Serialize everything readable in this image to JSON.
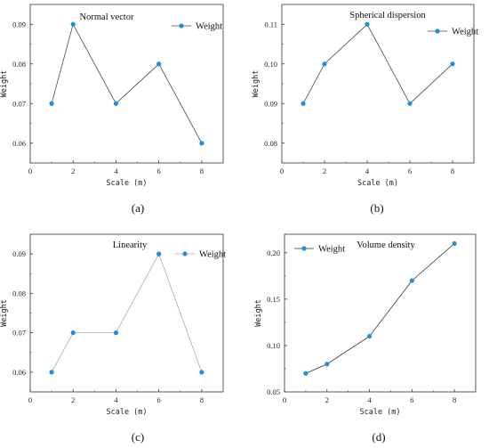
{
  "chart_data": [
    {
      "type": "line",
      "panel": "(a)",
      "title": "Normal vector",
      "xlabel": "Scale (m)",
      "ylabel": "Weight",
      "x": [
        1,
        2,
        4,
        6,
        8
      ],
      "series": [
        {
          "name": "Weight",
          "values": [
            0.07,
            0.09,
            0.07,
            0.08,
            0.06
          ]
        }
      ],
      "xlim": [
        0,
        9
      ],
      "ylim": [
        0.055,
        0.095
      ],
      "xticks": [
        "0",
        "2",
        "4",
        "6",
        "8"
      ],
      "yticks": [
        "0.06",
        "0.07",
        "0.08",
        "0.09"
      ],
      "legend_position": "top-right",
      "line_color": "#4a4a4a",
      "marker_color": "#1e90d8",
      "grid": false
    },
    {
      "type": "line",
      "panel": "(b)",
      "title": "Spherical dispersion",
      "xlabel": "Scale (m)",
      "ylabel": "Weight",
      "x": [
        1,
        2,
        4,
        6,
        8
      ],
      "series": [
        {
          "name": "Weight",
          "values": [
            0.09,
            0.1,
            0.11,
            0.09,
            0.1
          ]
        }
      ],
      "xlim": [
        0,
        9
      ],
      "ylim": [
        0.075,
        0.115
      ],
      "xticks": [
        "0",
        "2",
        "4",
        "6",
        "8"
      ],
      "yticks": [
        "0.08",
        "0.09",
        "0.10",
        "0.11"
      ],
      "legend_position": "top-right",
      "line_color": "#4a4a4a",
      "marker_color": "#1e90d8",
      "grid": false
    },
    {
      "type": "line",
      "panel": "(c)",
      "title": "Linearity",
      "xlabel": "Scale (m)",
      "ylabel": "Weight",
      "x": [
        1,
        2,
        4,
        6,
        8
      ],
      "series": [
        {
          "name": "Weight",
          "values": [
            0.06,
            0.07,
            0.07,
            0.09,
            0.06
          ]
        }
      ],
      "xlim": [
        0,
        9
      ],
      "ylim": [
        0.055,
        0.095
      ],
      "xticks": [
        "0",
        "2",
        "4",
        "6",
        "8"
      ],
      "yticks": [
        "0.06",
        "0.07",
        "0.08",
        "0.09"
      ],
      "legend_position": "top-right",
      "line_color": "#aaaaaa",
      "marker_color": "#1e90d8",
      "grid": false
    },
    {
      "type": "line",
      "panel": "(d)",
      "title": "Volume density",
      "xlabel": "Scale (m)",
      "ylabel": "Weight",
      "x": [
        1,
        2,
        4,
        6,
        8
      ],
      "series": [
        {
          "name": "Weight",
          "values": [
            0.07,
            0.08,
            0.11,
            0.17,
            0.21
          ]
        }
      ],
      "xlim": [
        0,
        9
      ],
      "ylim": [
        0.05,
        0.22
      ],
      "xticks": [
        "0",
        "2",
        "4",
        "6",
        "8"
      ],
      "yticks": [
        "0.05",
        "0.10",
        "0.15",
        "0.20"
      ],
      "legend_position": "top-left",
      "line_color": "#333333",
      "marker_color": "#1e90d8",
      "grid": false
    }
  ]
}
